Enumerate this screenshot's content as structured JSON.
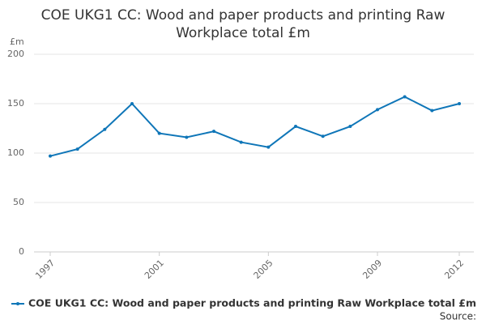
{
  "chart_data": {
    "type": "line",
    "title": "COE UKG1 CC: Wood and paper products and printing Raw Workplace total £m",
    "y_label": "£m",
    "x": [
      1997,
      1998,
      1999,
      2000,
      2001,
      2002,
      2003,
      2004,
      2005,
      2006,
      2007,
      2008,
      2009,
      2010,
      2011,
      2012
    ],
    "series": [
      {
        "name": "COE UKG1 CC: Wood and paper products and printing Raw Workplace total £m",
        "color": "#0f76b8",
        "values": [
          97,
          104,
          124,
          150,
          120,
          116,
          122,
          111,
          106,
          127,
          117,
          127,
          144,
          157,
          143,
          150
        ]
      }
    ],
    "xlim": [
      1997,
      2012
    ],
    "xticks": [
      1997,
      2001,
      2005,
      2009,
      2012
    ],
    "ylim": [
      0,
      200
    ],
    "yticks": [
      0,
      50,
      100,
      150,
      200
    ],
    "grid": true,
    "legend": "bottom",
    "source": "Source:"
  }
}
